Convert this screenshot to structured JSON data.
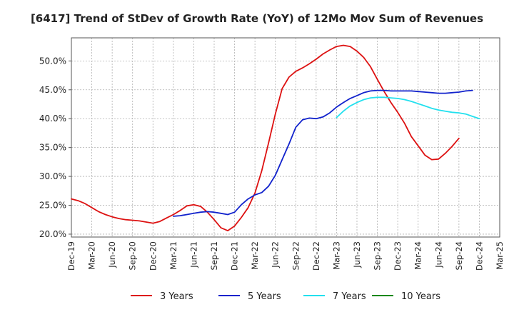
{
  "colors": {
    "background": "#ffffff",
    "plot_background": "#ffffff",
    "grid": "#b0b0b0",
    "axis": "#555555",
    "text": "#222222"
  },
  "chart_data": {
    "type": "line",
    "title": "[6417]  Trend of StDev of Growth Rate (YoY) of 12Mo Mov Sum of Revenues",
    "xlabel": "",
    "ylabel": "",
    "ylim": [
      0.195,
      0.54
    ],
    "x_tick_labels": [
      "Dec-19",
      "Mar-20",
      "Jun-20",
      "Sep-20",
      "Dec-20",
      "Mar-21",
      "Jun-21",
      "Sep-21",
      "Dec-21",
      "Mar-22",
      "Jun-22",
      "Sep-22",
      "Dec-22",
      "Mar-23",
      "Jun-23",
      "Sep-23",
      "Dec-23",
      "Mar-24",
      "Jun-24",
      "Sep-24",
      "Dec-24",
      "Mar-25"
    ],
    "y_ticks": [
      0.2,
      0.25,
      0.3,
      0.35,
      0.4,
      0.45,
      0.5
    ],
    "y_tick_labels": [
      "20.0%",
      "25.0%",
      "30.0%",
      "35.0%",
      "40.0%",
      "45.0%",
      "50.0%"
    ],
    "grid": true,
    "legend_position": "bottom",
    "series": [
      {
        "name": "3 Years",
        "color": "#dd1111",
        "start_index": 0,
        "values": [
          0.261,
          0.258,
          0.253,
          0.246,
          0.239,
          0.234,
          0.23,
          0.227,
          0.225,
          0.224,
          0.223,
          0.221,
          0.219,
          0.222,
          0.228,
          0.234,
          0.241,
          0.249,
          0.251,
          0.248,
          0.238,
          0.225,
          0.211,
          0.206,
          0.214,
          0.229,
          0.246,
          0.271,
          0.31,
          0.358,
          0.408,
          0.452,
          0.472,
          0.482,
          0.488,
          0.495,
          0.503,
          0.512,
          0.519,
          0.525,
          0.527,
          0.525,
          0.517,
          0.506,
          0.49,
          0.468,
          0.447,
          0.428,
          0.411,
          0.392,
          0.369,
          0.353,
          0.337,
          0.329,
          0.33,
          0.34,
          0.352,
          0.366
        ]
      },
      {
        "name": "5 Years",
        "color": "#1122cc",
        "start_index": 15,
        "values": [
          0.231,
          0.232,
          0.234,
          0.236,
          0.238,
          0.239,
          0.238,
          0.236,
          0.234,
          0.238,
          0.251,
          0.261,
          0.268,
          0.272,
          0.283,
          0.302,
          0.329,
          0.356,
          0.385,
          0.398,
          0.401,
          0.4,
          0.403,
          0.41,
          0.42,
          0.428,
          0.435,
          0.44,
          0.445,
          0.448,
          0.449,
          0.449,
          0.448,
          0.448,
          0.448,
          0.448,
          0.447,
          0.446,
          0.445,
          0.444,
          0.444,
          0.445,
          0.446,
          0.448,
          0.449
        ]
      },
      {
        "name": "7 Years",
        "color": "#22e0ee",
        "start_index": 39,
        "values": [
          0.402,
          0.413,
          0.422,
          0.428,
          0.433,
          0.436,
          0.437,
          0.437,
          0.436,
          0.435,
          0.433,
          0.43,
          0.426,
          0.422,
          0.418,
          0.415,
          0.413,
          0.411,
          0.41,
          0.408,
          0.404,
          0.4
        ]
      },
      {
        "name": "10 Years",
        "color": "#118811",
        "start_index": 0,
        "values": []
      }
    ]
  }
}
